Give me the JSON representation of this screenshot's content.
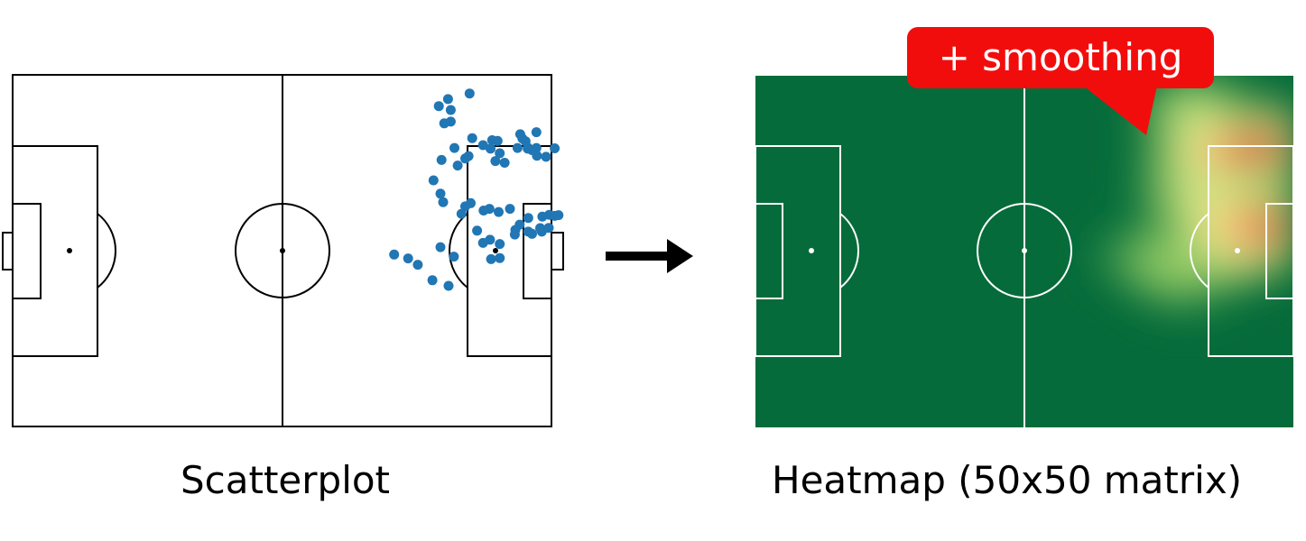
{
  "left_panel": {
    "caption": "Scatterplot"
  },
  "right_panel": {
    "caption": "Heatmap (50x50 matrix)",
    "callout": "+ smoothing"
  },
  "colors": {
    "shot_dots": "#2176b4",
    "pitch_green": "#066b3a",
    "callout_red": "#f20d0d",
    "arrow": "#000000"
  },
  "chart_data": {
    "type": "scatter",
    "title": "",
    "xlabel": "",
    "ylabel": "",
    "xlim": [
      0,
      100
    ],
    "ylim": [
      0,
      100
    ],
    "points": [
      [
        80.8,
        6.9
      ],
      [
        84.8,
        5.3
      ],
      [
        79.1,
        8.9
      ],
      [
        81.3,
        10.0
      ],
      [
        81.3,
        13.3
      ],
      [
        80.1,
        13.8
      ],
      [
        94.2,
        16.9
      ],
      [
        89.0,
        18.6
      ],
      [
        85.3,
        18.0
      ],
      [
        97.2,
        16.3
      ],
      [
        94.6,
        18.1
      ],
      [
        90.0,
        18.8
      ],
      [
        88.7,
        21.0
      ],
      [
        97.2,
        20.8
      ],
      [
        95.2,
        18.9
      ],
      [
        95.6,
        21.0
      ],
      [
        90.4,
        22.3
      ],
      [
        89.6,
        24.5
      ],
      [
        91.3,
        25.0
      ],
      [
        93.7,
        20.8
      ],
      [
        95.7,
        20.8
      ],
      [
        97.3,
        23.0
      ],
      [
        99.0,
        23.3
      ],
      [
        100.6,
        20.9
      ],
      [
        96.4,
        21.4
      ],
      [
        87.3,
        20.0
      ],
      [
        84.6,
        23.1
      ],
      [
        84.0,
        23.8
      ],
      [
        82.0,
        20.8
      ],
      [
        82.6,
        25.8
      ],
      [
        79.6,
        24.2
      ],
      [
        78.1,
        30.0
      ],
      [
        79.4,
        33.8
      ],
      [
        79.9,
        36.2
      ],
      [
        85.0,
        36.5
      ],
      [
        84.0,
        37.4
      ],
      [
        83.3,
        39.5
      ],
      [
        88.5,
        38.1
      ],
      [
        87.4,
        38.6
      ],
      [
        90.2,
        39.0
      ],
      [
        92.3,
        38.1
      ],
      [
        94.1,
        42.6
      ],
      [
        93.3,
        44.1
      ],
      [
        95.7,
        44.6
      ],
      [
        95.7,
        40.7
      ],
      [
        98.3,
        40.3
      ],
      [
        99.6,
        39.8
      ],
      [
        100.6,
        40.1
      ],
      [
        101.3,
        39.9
      ],
      [
        98.2,
        44.6
      ],
      [
        93.2,
        45.4
      ],
      [
        96.4,
        45.2
      ],
      [
        97.9,
        43.6
      ],
      [
        99.5,
        43.5
      ],
      [
        90.4,
        48.1
      ],
      [
        88.6,
        46.9
      ],
      [
        87.3,
        47.8
      ],
      [
        86.2,
        44.3
      ],
      [
        81.9,
        51.7
      ],
      [
        79.4,
        49.0
      ],
      [
        90.4,
        52.1
      ],
      [
        88.8,
        52.4
      ],
      [
        80.9,
        60.0
      ],
      [
        77.9,
        58.4
      ],
      [
        75.2,
        54.0
      ],
      [
        73.4,
        52.2
      ],
      [
        70.8,
        51.1
      ]
    ]
  }
}
